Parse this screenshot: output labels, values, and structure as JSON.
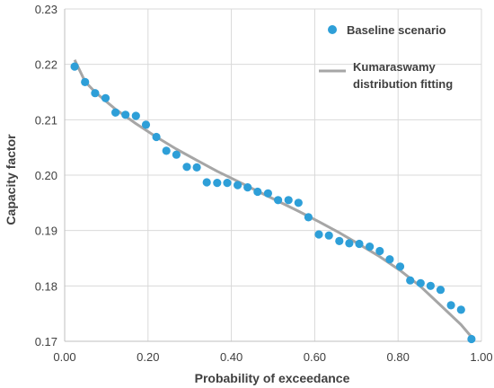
{
  "chart_data": {
    "type": "scatter",
    "xlabel": "Probability of exceedance",
    "ylabel": "Capacity factor",
    "xlim": [
      0.0,
      1.0
    ],
    "ylim": [
      0.17,
      0.23
    ],
    "x_ticks": [
      "0.00",
      "0.20",
      "0.40",
      "0.60",
      "0.80",
      "1.00"
    ],
    "y_ticks": [
      "0.17",
      "0.18",
      "0.19",
      "0.20",
      "0.21",
      "0.22",
      "0.23"
    ],
    "grid": true,
    "legend_position": "top-right",
    "series": [
      {
        "name": "Baseline scenario",
        "type": "scatter",
        "color": "#2E9FD8",
        "x": [
          0.024,
          0.049,
          0.073,
          0.098,
          0.122,
          0.146,
          0.171,
          0.195,
          0.22,
          0.244,
          0.268,
          0.293,
          0.317,
          0.341,
          0.366,
          0.39,
          0.415,
          0.439,
          0.463,
          0.488,
          0.512,
          0.537,
          0.561,
          0.585,
          0.61,
          0.634,
          0.659,
          0.683,
          0.707,
          0.732,
          0.756,
          0.78,
          0.805,
          0.829,
          0.854,
          0.878,
          0.902,
          0.927,
          0.951,
          0.976
        ],
        "y": [
          0.2196,
          0.2168,
          0.2148,
          0.2139,
          0.2113,
          0.2109,
          0.2107,
          0.2091,
          0.2069,
          0.2044,
          0.2037,
          0.2015,
          0.2014,
          0.1987,
          0.1986,
          0.1986,
          0.1982,
          0.1978,
          0.197,
          0.1967,
          0.1955,
          0.1955,
          0.195,
          0.1924,
          0.1893,
          0.1891,
          0.1881,
          0.1877,
          0.1876,
          0.1871,
          0.1863,
          0.1848,
          0.1835,
          0.181,
          0.1805,
          0.18,
          0.1793,
          0.1765,
          0.1757,
          0.1704
        ]
      },
      {
        "name": "Kumaraswamy distribution fitting",
        "name_lines": [
          "Kumaraswamy",
          "distribution fitting"
        ],
        "type": "line",
        "color": "#A6A6A6",
        "x": [
          0.024,
          0.049,
          0.073,
          0.098,
          0.122,
          0.171,
          0.22,
          0.268,
          0.317,
          0.366,
          0.415,
          0.463,
          0.512,
          0.561,
          0.61,
          0.659,
          0.707,
          0.756,
          0.805,
          0.854,
          0.902,
          0.951,
          0.976
        ],
        "y": [
          0.2208,
          0.2169,
          0.215,
          0.2134,
          0.2119,
          0.2093,
          0.2069,
          0.2047,
          0.2027,
          0.2007,
          0.1989,
          0.1971,
          0.1953,
          0.1935,
          0.1916,
          0.1896,
          0.1875,
          0.1853,
          0.1828,
          0.1799,
          0.1765,
          0.173,
          0.1708
        ]
      }
    ]
  }
}
